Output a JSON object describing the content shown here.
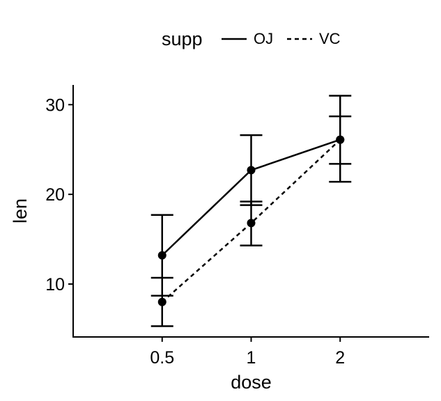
{
  "chart_data": {
    "type": "line",
    "xlabel": "dose",
    "ylabel": "len",
    "categories": [
      "0.5",
      "1",
      "2"
    ],
    "y_ticks": [
      10,
      20,
      30
    ],
    "ylim": [
      4.1,
      32.2
    ],
    "grid": false,
    "legend": {
      "title": "supp",
      "position": "top"
    },
    "series": [
      {
        "name": "OJ",
        "line_style": "solid",
        "values": [
          13.2,
          22.7,
          26.1
        ],
        "error_low": [
          8.7,
          18.8,
          21.4
        ],
        "error_high": [
          17.7,
          26.6,
          31.0
        ]
      },
      {
        "name": "VC",
        "line_style": "dashed",
        "values": [
          8.0,
          16.8,
          26.1
        ],
        "error_low": [
          5.3,
          14.3,
          23.4
        ],
        "error_high": [
          10.7,
          19.2,
          28.7
        ]
      }
    ],
    "colors": {
      "ink": "#000000",
      "background": "#ffffff"
    }
  }
}
